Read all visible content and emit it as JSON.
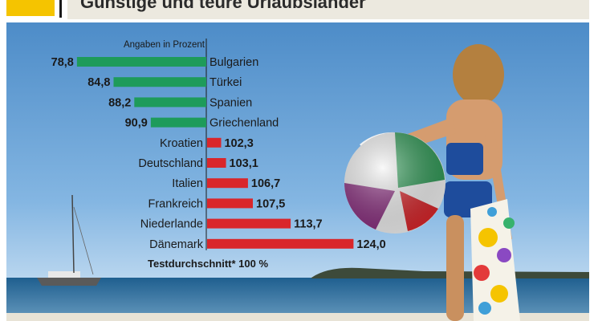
{
  "header": {
    "title": "Günstige und teure Urlaubsländer"
  },
  "chart_data": {
    "type": "bar",
    "orientation": "horizontal-diverging",
    "note": "Angaben in Prozent",
    "baseline_label": "Testdurchschnitt* 100 %",
    "baseline": 100,
    "categories": [
      "Bulgarien",
      "Türkei",
      "Spanien",
      "Griechenland",
      "Kroatien",
      "Deutschland",
      "Italien",
      "Frankreich",
      "Niederlande",
      "Dänemark"
    ],
    "values": [
      78.8,
      84.8,
      88.2,
      90.9,
      102.3,
      103.1,
      106.7,
      107.5,
      113.7,
      124.0
    ],
    "value_labels": [
      "78,8",
      "84,8",
      "88,2",
      "90,9",
      "102,3",
      "103,1",
      "106,7",
      "107,5",
      "113,7",
      "124,0"
    ],
    "colors": {
      "below_average": "#1e9b5a",
      "above_average": "#d9262b"
    }
  }
}
